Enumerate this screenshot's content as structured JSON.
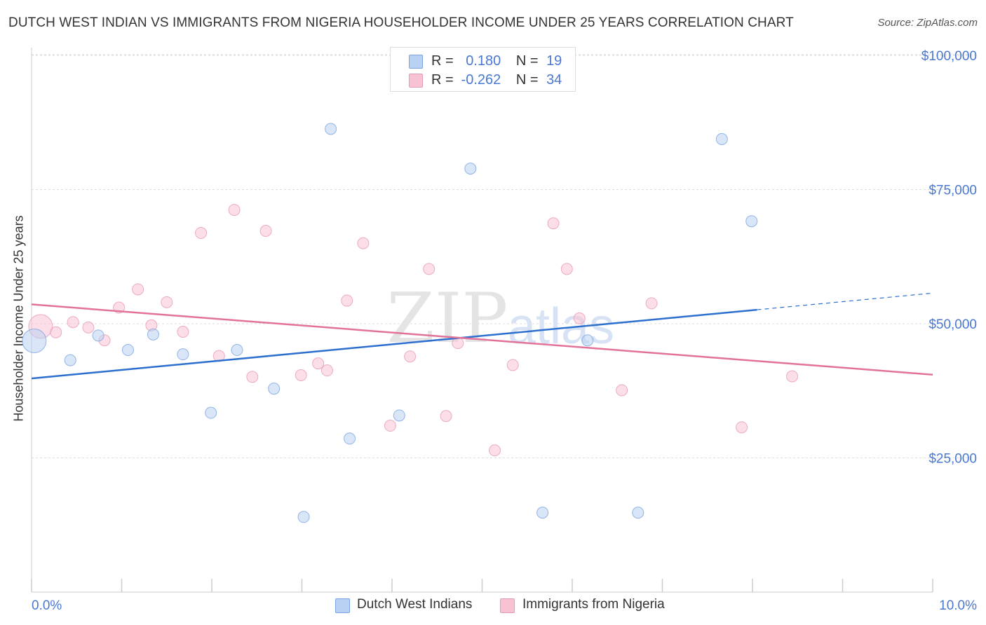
{
  "header": {
    "title": "DUTCH WEST INDIAN VS IMMIGRANTS FROM NIGERIA HOUSEHOLDER INCOME UNDER 25 YEARS CORRELATION CHART",
    "source": "Source: ZipAtlas.com"
  },
  "legend": {
    "r_label": "R =",
    "n_label": "N =",
    "blue": {
      "r": "0.180",
      "n": "19"
    },
    "pink": {
      "r": "-0.262",
      "n": "34"
    }
  },
  "bottom_legend": {
    "blue_label": "Dutch West Indians",
    "pink_label": "Immigrants from Nigeria"
  },
  "colors": {
    "blue": "#2c6fcf",
    "blue_fill": "#b9d2f3",
    "pink": "#e2729a",
    "pink_fill": "#f7c3d3",
    "tick_text": "#4a78d0"
  },
  "chart_data": {
    "type": "scatter",
    "title": "DUTCH WEST INDIAN VS IMMIGRANTS FROM NIGERIA HOUSEHOLDER INCOME UNDER 25 YEARS CORRELATION CHART",
    "xlabel": "",
    "ylabel": "Householder Income Under 25 years",
    "xlim": [
      0,
      10
    ],
    "ylim": [
      0,
      105000
    ],
    "x_tick_labels": [
      "0.0%",
      "10.0%"
    ],
    "y_tick_labels": [
      "$100,000",
      "$75,000",
      "$50,000",
      "$25,000"
    ],
    "y_ticks": [
      100000,
      75000,
      50000,
      25000
    ],
    "grid": true,
    "legend_position": "top-center",
    "series": [
      {
        "name": "Dutch West Indians",
        "color": "#2c6fcf",
        "r": 0.18,
        "n": 19,
        "trend": {
          "x1": 0,
          "y1": 39800,
          "x2": 8.05,
          "y2": 52600,
          "dashed_to_x": 10,
          "dashed_to_y": 55700
        },
        "points": [
          {
            "x": 0.03,
            "y": 46800,
            "size": "large"
          },
          {
            "x": 0.43,
            "y": 43200
          },
          {
            "x": 0.74,
            "y": 47800
          },
          {
            "x": 1.07,
            "y": 45100
          },
          {
            "x": 1.35,
            "y": 48000
          },
          {
            "x": 1.68,
            "y": 44300
          },
          {
            "x": 1.99,
            "y": 33400
          },
          {
            "x": 2.28,
            "y": 45100
          },
          {
            "x": 2.69,
            "y": 37900
          },
          {
            "x": 3.02,
            "y": 14000
          },
          {
            "x": 3.32,
            "y": 86300
          },
          {
            "x": 3.53,
            "y": 28600
          },
          {
            "x": 4.08,
            "y": 32900
          },
          {
            "x": 4.87,
            "y": 78900
          },
          {
            "x": 5.67,
            "y": 14800
          },
          {
            "x": 6.17,
            "y": 46900
          },
          {
            "x": 6.73,
            "y": 14800
          },
          {
            "x": 7.66,
            "y": 84400
          },
          {
            "x": 7.99,
            "y": 69100
          }
        ]
      },
      {
        "name": "Immigrants from Nigeria",
        "color": "#e2729a",
        "r": -0.262,
        "n": 34,
        "trend": {
          "x1": 0,
          "y1": 53600,
          "x2": 10,
          "y2": 40500
        },
        "points": [
          {
            "x": 0.1,
            "y": 49500,
            "size": "large"
          },
          {
            "x": 0.27,
            "y": 48400
          },
          {
            "x": 0.46,
            "y": 50300
          },
          {
            "x": 0.63,
            "y": 49300
          },
          {
            "x": 0.81,
            "y": 46900
          },
          {
            "x": 0.97,
            "y": 53000
          },
          {
            "x": 1.18,
            "y": 56400
          },
          {
            "x": 1.33,
            "y": 49700
          },
          {
            "x": 1.5,
            "y": 54000
          },
          {
            "x": 1.68,
            "y": 48500
          },
          {
            "x": 1.88,
            "y": 66900
          },
          {
            "x": 2.08,
            "y": 44000
          },
          {
            "x": 2.25,
            "y": 71200
          },
          {
            "x": 2.45,
            "y": 40100
          },
          {
            "x": 2.6,
            "y": 67300
          },
          {
            "x": 2.99,
            "y": 40400
          },
          {
            "x": 3.18,
            "y": 42600
          },
          {
            "x": 3.28,
            "y": 41300
          },
          {
            "x": 3.5,
            "y": 54300
          },
          {
            "x": 3.68,
            "y": 65000
          },
          {
            "x": 3.98,
            "y": 31000
          },
          {
            "x": 4.2,
            "y": 43900
          },
          {
            "x": 4.41,
            "y": 60200
          },
          {
            "x": 4.6,
            "y": 32800
          },
          {
            "x": 4.73,
            "y": 46400
          },
          {
            "x": 5.14,
            "y": 26400
          },
          {
            "x": 5.34,
            "y": 42300
          },
          {
            "x": 5.79,
            "y": 68700
          },
          {
            "x": 5.94,
            "y": 60200
          },
          {
            "x": 6.08,
            "y": 51000
          },
          {
            "x": 6.55,
            "y": 37600
          },
          {
            "x": 6.88,
            "y": 53800
          },
          {
            "x": 7.88,
            "y": 30700
          },
          {
            "x": 8.44,
            "y": 40200
          }
        ]
      }
    ]
  }
}
